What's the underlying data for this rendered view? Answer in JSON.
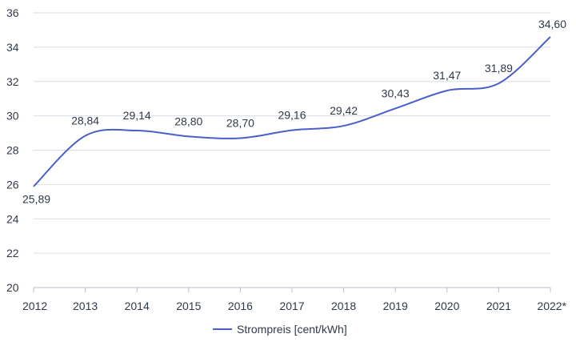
{
  "chart_data": {
    "type": "line",
    "categories": [
      "2012",
      "2013",
      "2014",
      "2015",
      "2016",
      "2017",
      "2018",
      "2019",
      "2020",
      "2021",
      "2022*"
    ],
    "series": [
      {
        "name": "Strompreis [cent/kWh]",
        "values": [
          25.89,
          28.84,
          29.14,
          28.8,
          28.7,
          29.16,
          29.42,
          30.43,
          31.47,
          31.89,
          34.6
        ],
        "labels": [
          "25,89",
          "28,84",
          "29,14",
          "28,80",
          "28,70",
          "29,16",
          "29,42",
          "30,43",
          "31,47",
          "31,89",
          "34,60"
        ],
        "color": "#4a5fc8"
      }
    ],
    "yticks": [
      "20",
      "22",
      "24",
      "26",
      "28",
      "30",
      "32",
      "34",
      "36"
    ],
    "ylim": [
      20,
      36
    ],
    "grid": true,
    "gridColor": "#d9dde6",
    "axisColor": "#b8bec9",
    "legend": "bottom-center"
  }
}
